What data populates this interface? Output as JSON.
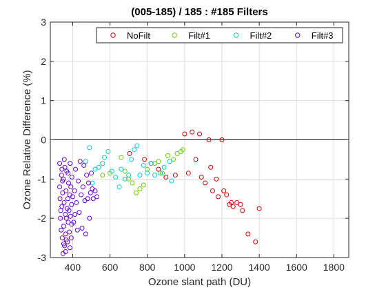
{
  "chart_data": {
    "type": "scatter",
    "title": "(005-185) / 185 : #185 Filters",
    "xlabel": "Ozone slant path (DU)",
    "ylabel": "Ozone Relative Difference (%)",
    "xlim": [
      280,
      1880
    ],
    "ylim": [
      -3,
      3
    ],
    "xticks": [
      400,
      600,
      800,
      1000,
      1200,
      1400,
      1600,
      1800
    ],
    "yticks": [
      -3,
      -2,
      -1,
      0,
      1,
      2,
      3
    ],
    "grid": true,
    "reference_line_y": 0,
    "legend_position": "top",
    "series": [
      {
        "name": "NoFilt",
        "color": "#cc0000",
        "points": [
          [
            705,
            -0.35
          ],
          [
            785,
            -0.5
          ],
          [
            820,
            -0.6
          ],
          [
            860,
            -0.75
          ],
          [
            900,
            -0.95
          ],
          [
            950,
            -0.9
          ],
          [
            1000,
            0.15
          ],
          [
            1020,
            -0.85
          ],
          [
            1040,
            0.2
          ],
          [
            1060,
            -0.5
          ],
          [
            1080,
            0.15
          ],
          [
            1090,
            -0.95
          ],
          [
            1110,
            -1.1
          ],
          [
            1130,
            0.0
          ],
          [
            1140,
            -0.7
          ],
          [
            1150,
            -1.3
          ],
          [
            1170,
            -1.0
          ],
          [
            1180,
            -1.45
          ],
          [
            1200,
            0.0
          ],
          [
            1210,
            -1.3
          ],
          [
            1225,
            -1.4
          ],
          [
            1240,
            -1.65
          ],
          [
            1250,
            -1.6
          ],
          [
            1260,
            -1.7
          ],
          [
            1280,
            -1.6
          ],
          [
            1300,
            -1.65
          ],
          [
            1310,
            -1.8
          ],
          [
            1340,
            -2.4
          ],
          [
            1380,
            -2.6
          ],
          [
            1400,
            -1.75
          ]
        ]
      },
      {
        "name": "Filt#1",
        "color": "#66cc00",
        "points": [
          [
            560,
            -0.9
          ],
          [
            600,
            -0.85
          ],
          [
            660,
            -0.45
          ],
          [
            680,
            -0.8
          ],
          [
            700,
            -1.0
          ],
          [
            720,
            -1.1
          ],
          [
            740,
            -1.35
          ],
          [
            760,
            -1.25
          ],
          [
            780,
            -1.15
          ],
          [
            800,
            -0.75
          ],
          [
            840,
            -0.6
          ],
          [
            860,
            -0.55
          ],
          [
            880,
            -0.85
          ],
          [
            910,
            -0.4
          ],
          [
            940,
            -0.5
          ],
          [
            960,
            -0.35
          ],
          [
            980,
            -0.3
          ],
          [
            990,
            -0.25
          ]
        ]
      },
      {
        "name": "Filt#2",
        "color": "#00cccc",
        "points": [
          [
            470,
            -0.55
          ],
          [
            490,
            -0.2
          ],
          [
            505,
            -1.1
          ],
          [
            520,
            -0.75
          ],
          [
            540,
            -0.7
          ],
          [
            560,
            -0.6
          ],
          [
            570,
            -0.45
          ],
          [
            590,
            -0.3
          ],
          [
            610,
            -0.8
          ],
          [
            630,
            -0.95
          ],
          [
            650,
            -1.2
          ],
          [
            660,
            -0.75
          ],
          [
            680,
            -1.0
          ],
          [
            700,
            -0.9
          ],
          [
            715,
            -0.5
          ],
          [
            730,
            -0.25
          ],
          [
            745,
            -0.15
          ],
          [
            760,
            -0.9
          ],
          [
            780,
            -0.65
          ],
          [
            800,
            -0.85
          ],
          [
            820,
            -0.6
          ],
          [
            840,
            -0.9
          ],
          [
            870,
            -0.85
          ],
          [
            890,
            -0.7
          ],
          [
            920,
            -0.55
          ],
          [
            930,
            -1.05
          ]
        ]
      },
      {
        "name": "Filt#3",
        "color": "#6600cc",
        "points": [
          [
            330,
            -0.6
          ],
          [
            330,
            -1.2
          ],
          [
            332,
            -1.5
          ],
          [
            334,
            -2.0
          ],
          [
            336,
            -1.8
          ],
          [
            338,
            -2.3
          ],
          [
            340,
            -0.9
          ],
          [
            342,
            -1.7
          ],
          [
            344,
            -2.5
          ],
          [
            346,
            -1.35
          ],
          [
            348,
            -2.9
          ],
          [
            350,
            -1.0
          ],
          [
            352,
            -2.2
          ],
          [
            354,
            -1.6
          ],
          [
            356,
            -2.7
          ],
          [
            358,
            -0.7
          ],
          [
            360,
            -1.9
          ],
          [
            362,
            -2.4
          ],
          [
            364,
            -1.3
          ],
          [
            366,
            -2.0
          ],
          [
            368,
            -0.8
          ],
          [
            370,
            -1.75
          ],
          [
            372,
            -2.6
          ],
          [
            374,
            -1.5
          ],
          [
            376,
            -2.1
          ],
          [
            378,
            -1.1
          ],
          [
            380,
            -1.8
          ],
          [
            382,
            -2.35
          ],
          [
            384,
            -1.4
          ],
          [
            386,
            -0.6
          ],
          [
            388,
            -1.95
          ],
          [
            390,
            -1.2
          ],
          [
            392,
            -2.5
          ],
          [
            394,
            -1.65
          ],
          [
            396,
            -0.95
          ],
          [
            400,
            -1.45
          ],
          [
            405,
            -2.1
          ],
          [
            410,
            -1.3
          ],
          [
            415,
            -0.75
          ],
          [
            420,
            -1.6
          ],
          [
            425,
            -2.3
          ],
          [
            430,
            -1.05
          ],
          [
            435,
            -1.85
          ],
          [
            440,
            -0.55
          ],
          [
            445,
            -1.4
          ],
          [
            450,
            -2.25
          ],
          [
            455,
            -1.2
          ],
          [
            460,
            -0.65
          ],
          [
            465,
            -1.55
          ],
          [
            470,
            -2.4
          ],
          [
            475,
            -0.9
          ],
          [
            480,
            -1.5
          ],
          [
            485,
            -1.1
          ],
          [
            490,
            -2.0
          ],
          [
            495,
            -1.35
          ],
          [
            500,
            -0.85
          ],
          [
            505,
            -1.25
          ],
          [
            510,
            -1.5
          ],
          [
            520,
            -1.3
          ],
          [
            530,
            -1.45
          ],
          [
            345,
            -1.05
          ],
          [
            355,
            -0.5
          ],
          [
            365,
            -2.55
          ],
          [
            375,
            -0.85
          ],
          [
            385,
            -2.75
          ],
          [
            395,
            -2.15
          ],
          [
            362,
            -2.85
          ],
          [
            352,
            -2.65
          ],
          [
            342,
            -0.75
          ],
          [
            412,
            -1.9
          ]
        ]
      }
    ]
  }
}
